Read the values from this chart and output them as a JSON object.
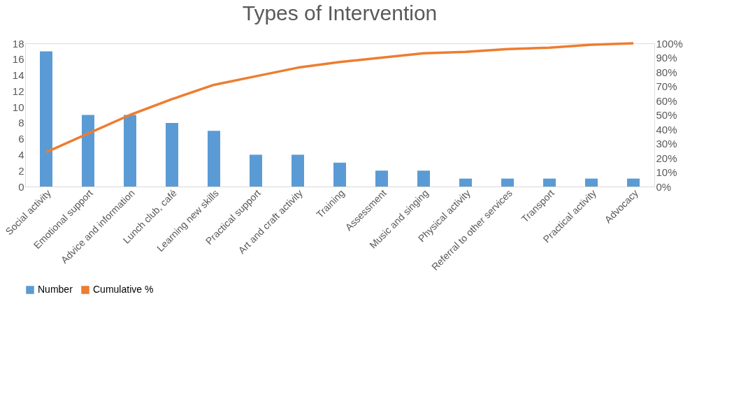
{
  "chart_data": {
    "type": "bar",
    "title": "Types of Intervention",
    "categories": [
      "Social activity",
      "Emotional support",
      "Advice and information",
      "Lunch club, café",
      "Learning new skills",
      "Practical support",
      "Art and craft activity",
      "Training",
      "Assessment",
      "Music and singing",
      "Physical activity",
      "Referral to other services",
      "Transport",
      "Practical activity",
      "Advocacy"
    ],
    "series": [
      {
        "name": "Number",
        "color": "#5b9bd5",
        "values": [
          17,
          9,
          9,
          8,
          7,
          4,
          4,
          3,
          2,
          2,
          1,
          1,
          1,
          1,
          1
        ]
      },
      {
        "name": "Cumulative %",
        "type": "line",
        "axis": "y2",
        "color": "#ed7d31",
        "values": [
          24,
          37,
          50,
          61,
          71,
          77,
          83,
          87,
          90,
          93,
          94,
          96,
          97,
          99,
          100
        ]
      }
    ],
    "ylim": [
      0,
      18
    ],
    "yticks": [
      0,
      2,
      4,
      6,
      8,
      10,
      12,
      14,
      16,
      18
    ],
    "y2lim": [
      0,
      100
    ],
    "y2ticks": [
      {
        "value": 0,
        "label": "0%"
      },
      {
        "value": 10,
        "label": "10%"
      },
      {
        "value": 20,
        "label": "20%"
      },
      {
        "value": 30,
        "label": "30%"
      },
      {
        "value": 40,
        "label": "40%"
      },
      {
        "value": 50,
        "label": "50%"
      },
      {
        "value": 60,
        "label": "60%"
      },
      {
        "value": 70,
        "label": "70%"
      },
      {
        "value": 80,
        "label": "80%"
      },
      {
        "value": 90,
        "label": "90%"
      },
      {
        "value": 100,
        "label": "100%"
      }
    ],
    "grid": false,
    "legend": "bottom",
    "marker": "none",
    "line_style": "solid"
  }
}
